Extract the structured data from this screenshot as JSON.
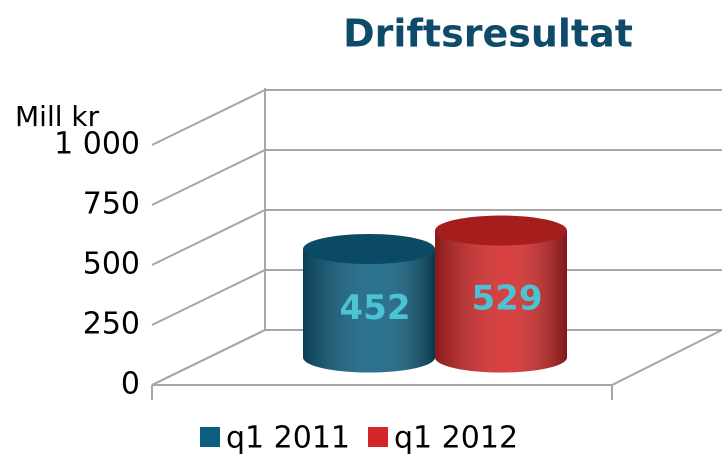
{
  "chart_data": {
    "type": "bar3d",
    "title": "Driftsresultat",
    "y_label": "Mill kr",
    "categories": [
      null
    ],
    "series": [
      {
        "name": "q1 2011",
        "color": "#0d5f80",
        "values": [
          452
        ]
      },
      {
        "name": "q1 2012",
        "color": "#d42626",
        "values": [
          529
        ]
      }
    ],
    "label_color": "#4cc3d3",
    "ylim": [
      0,
      1000
    ],
    "yticks": [
      0,
      250,
      500,
      750,
      {
        "value": 1000,
        "label": "1 000"
      }
    ],
    "grid": true,
    "legend": "bottom"
  }
}
